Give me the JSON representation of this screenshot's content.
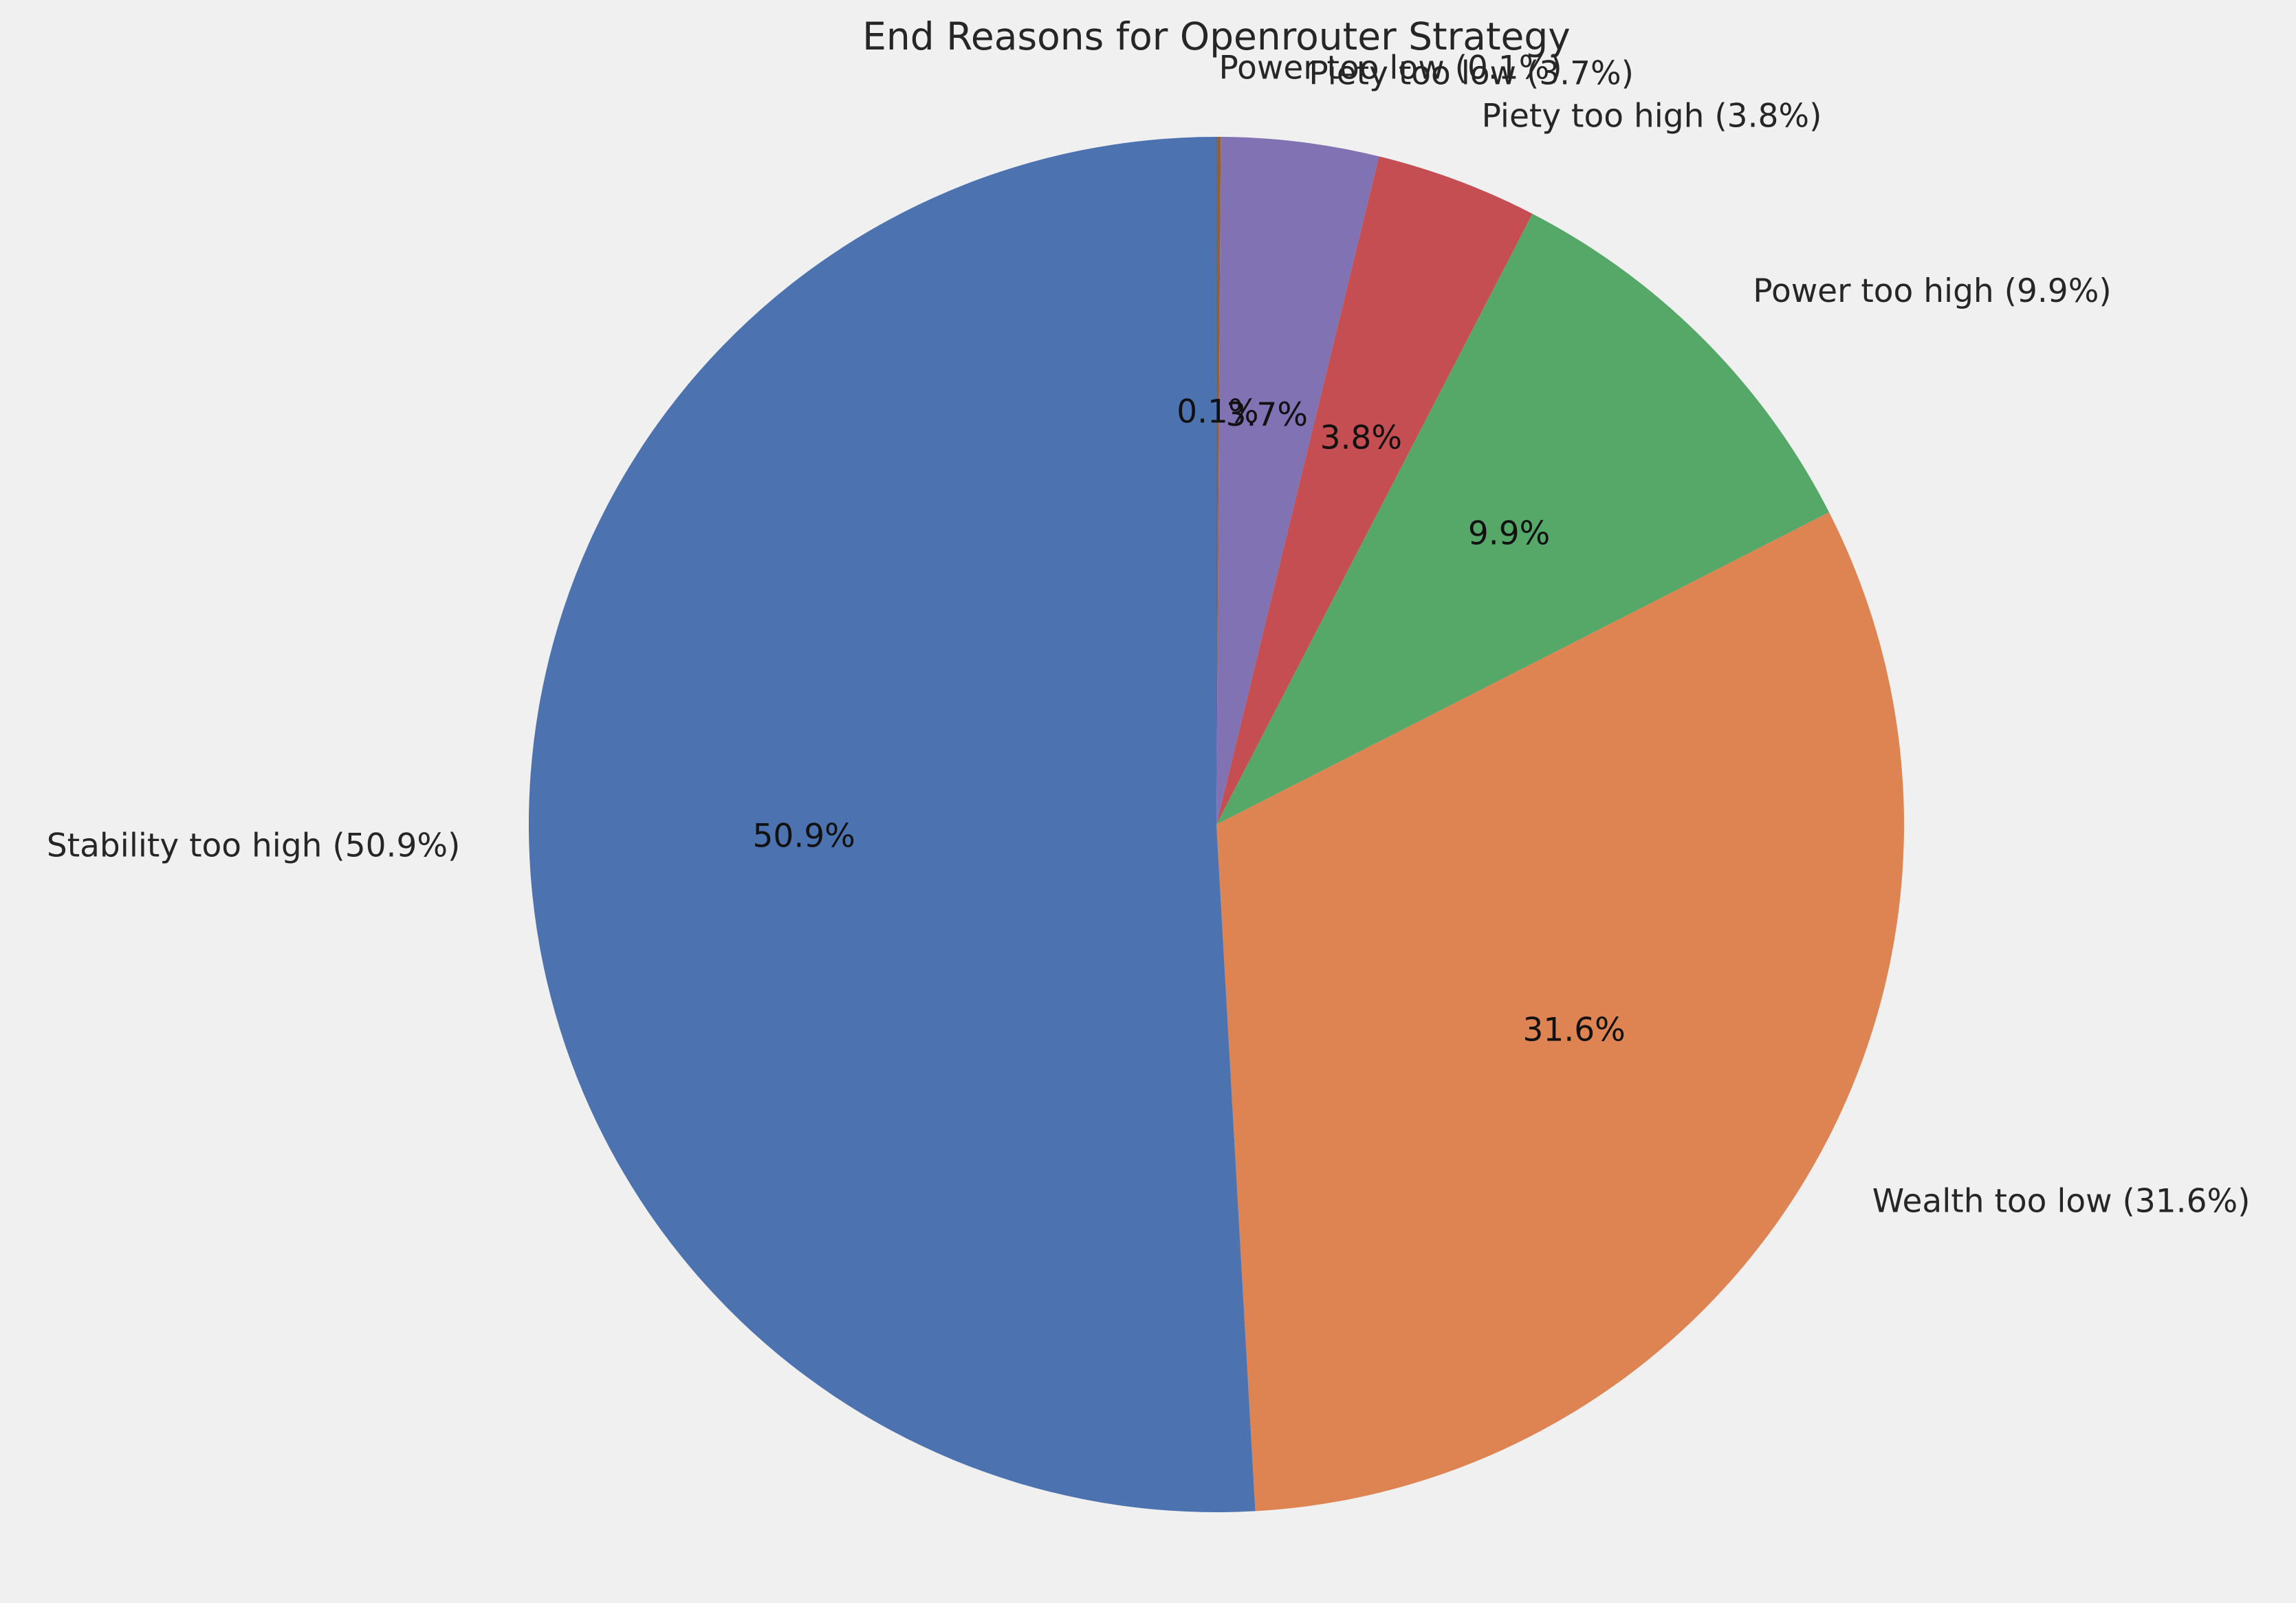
{
  "chart_data": {
    "type": "pie",
    "title": "End Reasons for Openrouter Strategy",
    "slices": [
      {
        "label": "Power too low",
        "value": 0.1,
        "outer_label": "Power too low (0.1%)",
        "pct_label": "0.1%",
        "color": "#8c613c"
      },
      {
        "label": "Piety too low",
        "value": 3.7,
        "outer_label": "Piety too low (3.7%)",
        "pct_label": "3.7%",
        "color": "#8172b3"
      },
      {
        "label": "Piety too high",
        "value": 3.8,
        "outer_label": "Piety too high (3.8%)",
        "pct_label": "3.8%",
        "color": "#c44e52"
      },
      {
        "label": "Power too high",
        "value": 9.9,
        "outer_label": "Power too high (9.9%)",
        "pct_label": "9.9%",
        "color": "#55a868"
      },
      {
        "label": "Wealth too low",
        "value": 31.6,
        "outer_label": "Wealth too low (31.6%)",
        "pct_label": "31.6%",
        "color": "#dd8452"
      },
      {
        "label": "Stability too high",
        "value": 50.9,
        "outer_label": "Stability too high (50.9%)",
        "pct_label": "50.9%",
        "color": "#4c72b0"
      }
    ],
    "start_angle": "top",
    "direction": "clockwise",
    "legend": "none",
    "background": "#f0f0f0"
  }
}
